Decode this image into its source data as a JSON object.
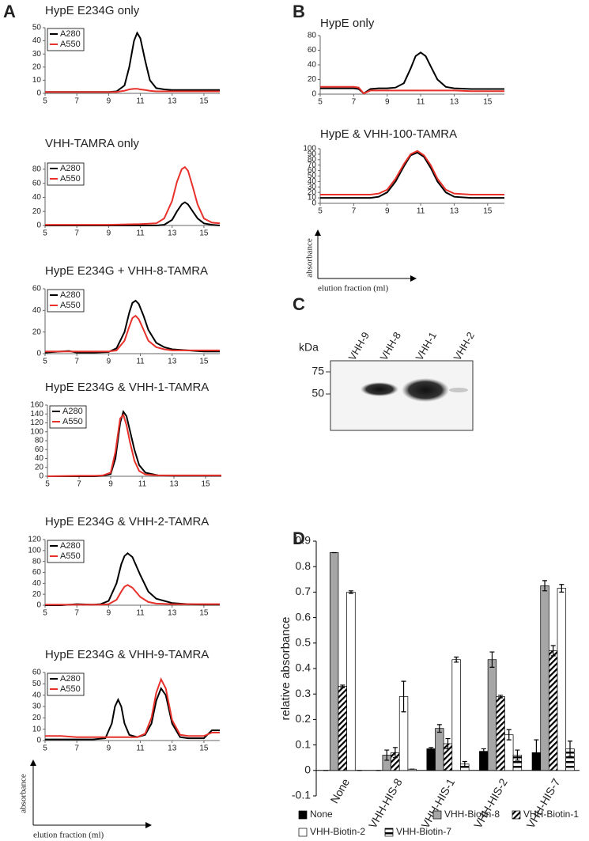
{
  "panel_labels": [
    "A",
    "B",
    "C",
    "D"
  ],
  "axis_sketch": {
    "y_label": "absorbance",
    "x_label": "elution fraction (ml)"
  },
  "blot": {
    "unit": "kDa",
    "lanes": [
      "VHH-9",
      "VHH-8",
      "VHH-1",
      "VHH-2"
    ],
    "markers": [
      "75",
      "50"
    ]
  },
  "chart_data": [
    {
      "type": "line",
      "title": "HypE E234G only",
      "legend": "upper-left",
      "x": [
        5,
        6,
        7,
        8,
        9,
        9.5,
        10,
        10.3,
        10.6,
        10.8,
        11,
        11.3,
        11.6,
        12,
        12.5,
        13,
        14,
        15,
        16
      ],
      "series": [
        {
          "name": "A280",
          "color": "#000000",
          "values": [
            1,
            1,
            1,
            1,
            1,
            1.5,
            6,
            20,
            40,
            46,
            42,
            25,
            10,
            4,
            3,
            2.5,
            2.5,
            2.5,
            2.5
          ]
        },
        {
          "name": "A550",
          "color": "#e8312a",
          "values": [
            1,
            1,
            1,
            1,
            1,
            1,
            2,
            3,
            3.5,
            3.5,
            3,
            2.5,
            2,
            1.5,
            1.5,
            1.5,
            1.5,
            1.5,
            1.5
          ]
        }
      ],
      "xlim": [
        5,
        16
      ],
      "ylim": [
        0,
        50
      ],
      "xticks": [
        5,
        7,
        9,
        11,
        13,
        15
      ],
      "yticks": [
        0,
        10,
        20,
        30,
        40,
        50
      ]
    },
    {
      "type": "line",
      "title": "VHH-TAMRA only",
      "legend": "upper-left",
      "x": [
        5,
        7,
        9,
        11,
        12,
        12.5,
        13,
        13.3,
        13.6,
        13.8,
        14,
        14.3,
        14.6,
        15,
        15.5,
        16
      ],
      "series": [
        {
          "name": "A280",
          "color": "#000000",
          "values": [
            0,
            0,
            0,
            0,
            0,
            1,
            8,
            20,
            30,
            33,
            30,
            20,
            10,
            3,
            1,
            0
          ]
        },
        {
          "name": "A550",
          "color": "#e8312a",
          "values": [
            1,
            1,
            1,
            2,
            3,
            10,
            35,
            62,
            80,
            83,
            78,
            55,
            30,
            10,
            4,
            3
          ]
        }
      ],
      "xlim": [
        5,
        16
      ],
      "ylim": [
        0,
        90
      ],
      "xticks": [
        5,
        7,
        9,
        11,
        13,
        15
      ],
      "yticks": [
        0,
        20,
        40,
        60,
        80
      ]
    },
    {
      "type": "line",
      "title": "HypE E234G + VHH-8-TAMRA",
      "legend": "upper-left",
      "x": [
        5,
        6,
        6.5,
        7,
        8,
        9,
        9.5,
        10,
        10.3,
        10.5,
        10.7,
        10.9,
        11.2,
        11.5,
        12,
        12.5,
        13,
        14,
        15,
        16
      ],
      "series": [
        {
          "name": "A280",
          "color": "#000000",
          "values": [
            1,
            2,
            2.5,
            1,
            1,
            1.5,
            5,
            20,
            38,
            47,
            49,
            46,
            35,
            22,
            10,
            6,
            4,
            3,
            2,
            2
          ]
        },
        {
          "name": "A550",
          "color": "#e8312a",
          "values": [
            2,
            2,
            2,
            2,
            2,
            2,
            3,
            12,
            25,
            33,
            35,
            32,
            22,
            12,
            6,
            4,
            3,
            3,
            3,
            3
          ]
        }
      ],
      "xlim": [
        5,
        16
      ],
      "ylim": [
        0,
        60
      ],
      "xticks": [
        5,
        7,
        9,
        11,
        13,
        15
      ],
      "yticks": [
        0,
        20,
        40,
        60
      ]
    },
    {
      "type": "line",
      "title": "HypE E234G & VHH-1-TAMRA",
      "legend": "upper-left",
      "x": [
        5,
        7,
        8,
        8.5,
        9,
        9.3,
        9.6,
        9.8,
        10,
        10.2,
        10.5,
        10.8,
        11.2,
        12,
        13,
        14,
        15,
        16
      ],
      "series": [
        {
          "name": "A280",
          "color": "#000000",
          "values": [
            0,
            0,
            0,
            1,
            5,
            40,
            120,
            145,
            135,
            105,
            60,
            25,
            8,
            2,
            1,
            1,
            1,
            1
          ]
        },
        {
          "name": "A550",
          "color": "#e8312a",
          "values": [
            0,
            1,
            1,
            2,
            8,
            55,
            130,
            138,
            115,
            80,
            35,
            12,
            4,
            2,
            2,
            2,
            2,
            2
          ]
        }
      ],
      "xlim": [
        5,
        16
      ],
      "ylim": [
        0,
        160
      ],
      "xticks": [
        5,
        7,
        9,
        11,
        13,
        15
      ],
      "yticks": [
        0,
        20,
        40,
        60,
        80,
        100,
        120,
        140,
        160
      ]
    },
    {
      "type": "line",
      "title": "HypE E234G & VHH-2-TAMRA",
      "legend": "upper-left",
      "x": [
        5,
        6,
        7,
        8,
        8.5,
        9,
        9.5,
        9.8,
        10,
        10.2,
        10.5,
        11,
        11.5,
        12,
        13,
        14,
        15,
        16
      ],
      "series": [
        {
          "name": "A280",
          "color": "#000000",
          "values": [
            0,
            0,
            2,
            1,
            2,
            8,
            40,
            75,
            90,
            95,
            88,
            55,
            25,
            12,
            4,
            2,
            1,
            1
          ]
        },
        {
          "name": "A550",
          "color": "#e8312a",
          "values": [
            1,
            1,
            1,
            1,
            1,
            2,
            10,
            25,
            34,
            37,
            32,
            15,
            6,
            3,
            2,
            2,
            2,
            2
          ]
        }
      ],
      "xlim": [
        5,
        16
      ],
      "ylim": [
        0,
        120
      ],
      "xticks": [
        5,
        7,
        9,
        11,
        13,
        15
      ],
      "yticks": [
        0,
        20,
        40,
        60,
        80,
        100,
        120
      ]
    },
    {
      "type": "line",
      "title": "HypE E234G & VHH-9-TAMRA",
      "legend": "upper-left",
      "x": [
        5,
        6,
        7,
        8,
        8.8,
        9.2,
        9.4,
        9.6,
        9.8,
        10,
        10.3,
        10.8,
        11.3,
        11.7,
        12,
        12.3,
        12.6,
        13,
        13.5,
        14,
        15,
        15.5,
        16
      ],
      "series": [
        {
          "name": "A280",
          "color": "#000000",
          "values": [
            1,
            1,
            1,
            1,
            2,
            15,
            30,
            36,
            30,
            15,
            5,
            3,
            5,
            15,
            35,
            46,
            40,
            15,
            3,
            2,
            2,
            9,
            9
          ]
        },
        {
          "name": "A550",
          "color": "#e8312a",
          "values": [
            4,
            4,
            3,
            3,
            3,
            3,
            3,
            3,
            3,
            3,
            3,
            3,
            6,
            20,
            42,
            54,
            46,
            18,
            5,
            4,
            4,
            7,
            7
          ]
        }
      ],
      "xlim": [
        5,
        16
      ],
      "ylim": [
        0,
        60
      ],
      "xticks": [
        5,
        7,
        9,
        11,
        13,
        15
      ],
      "yticks": [
        0,
        10,
        20,
        30,
        40,
        50,
        60
      ]
    },
    {
      "type": "line",
      "title": "HypE only",
      "x": [
        5,
        6,
        7,
        7.3,
        7.6,
        8,
        8.5,
        9,
        9.5,
        10,
        10.4,
        10.7,
        11,
        11.3,
        11.6,
        12,
        12.5,
        13,
        14,
        15,
        16
      ],
      "series": [
        {
          "name": "A280",
          "color": "#000000",
          "values": [
            8,
            8,
            8,
            7,
            1,
            7,
            8,
            8,
            9,
            15,
            35,
            52,
            57,
            52,
            38,
            20,
            10,
            8,
            7,
            7,
            7
          ]
        },
        {
          "name": "A550",
          "color": "#e8312a",
          "values": [
            10,
            10,
            10,
            9,
            1,
            5,
            5,
            5,
            5,
            5,
            5,
            5,
            5,
            5,
            5,
            5,
            5,
            5,
            4,
            4,
            4
          ]
        }
      ],
      "xlim": [
        5,
        16
      ],
      "ylim": [
        0,
        80
      ],
      "xticks": [
        5,
        7,
        9,
        11,
        13,
        15
      ],
      "yticks": [
        0,
        20,
        40,
        60,
        80
      ]
    },
    {
      "type": "line",
      "title": "HypE & VHH-100-TAMRA",
      "x": [
        5,
        7,
        8,
        8.5,
        9,
        9.5,
        10,
        10.4,
        10.8,
        11.2,
        11.6,
        12,
        12.5,
        13,
        14,
        16
      ],
      "series": [
        {
          "name": "A280",
          "color": "#000000",
          "values": [
            10,
            10,
            10,
            12,
            20,
            40,
            68,
            88,
            93,
            85,
            65,
            40,
            20,
            12,
            10,
            10
          ]
        },
        {
          "name": "A550",
          "color": "#e8312a",
          "values": [
            16,
            16,
            16,
            18,
            25,
            45,
            72,
            90,
            96,
            88,
            70,
            45,
            25,
            18,
            16,
            16
          ]
        }
      ],
      "xlim": [
        5,
        16
      ],
      "ylim": [
        0,
        100
      ],
      "xticks": [
        5,
        7,
        9,
        11,
        13,
        15
      ],
      "yticks": [
        0,
        10,
        20,
        30,
        40,
        50,
        60,
        70,
        80,
        90,
        100
      ]
    },
    {
      "type": "bar",
      "y_label": "relative absorbance",
      "categories": [
        "None",
        "VHH-HIS-8",
        "VHH-HIS-1",
        "VHH-HIS-2",
        "VHH-HIS-7"
      ],
      "series": [
        {
          "name": "None",
          "color": "#000000",
          "values": [
            0,
            0,
            0.085,
            0.075,
            0.07
          ],
          "errors": [
            0,
            0,
            0.005,
            0.01,
            0.05
          ]
        },
        {
          "name": "VHH-Biotin-8",
          "color": "#a6a6a6",
          "values": [
            0.855,
            0.06,
            0.165,
            0.435,
            0.725
          ],
          "errors": [
            0,
            0.02,
            0.015,
            0.03,
            0.02
          ]
        },
        {
          "name": "VHH-Biotin-1",
          "color": "#000000",
          "pattern": "diagonal",
          "values": [
            0.33,
            0.07,
            0.105,
            0.29,
            0.47
          ],
          "errors": [
            0.005,
            0.02,
            0.02,
            0.005,
            0.02
          ]
        },
        {
          "name": "VHH-Biotin-2",
          "color": "#ffffff",
          "values": [
            0.7,
            0.29,
            0.435,
            0.14,
            0.715
          ],
          "errors": [
            0.005,
            0.06,
            0.01,
            0.02,
            0.015
          ]
        },
        {
          "name": "VHH-Biotin-7",
          "color": "#000000",
          "pattern": "horizontal",
          "values": [
            0,
            0.005,
            0.025,
            0.06,
            0.085
          ],
          "errors": [
            0,
            0,
            0.01,
            0.02,
            0.03
          ]
        }
      ],
      "ylim": [
        -0.1,
        0.9
      ],
      "yticks": [
        -0.1,
        0,
        0.1,
        0.2,
        0.3,
        0.4,
        0.5,
        0.6,
        0.7,
        0.8,
        0.9
      ]
    }
  ]
}
